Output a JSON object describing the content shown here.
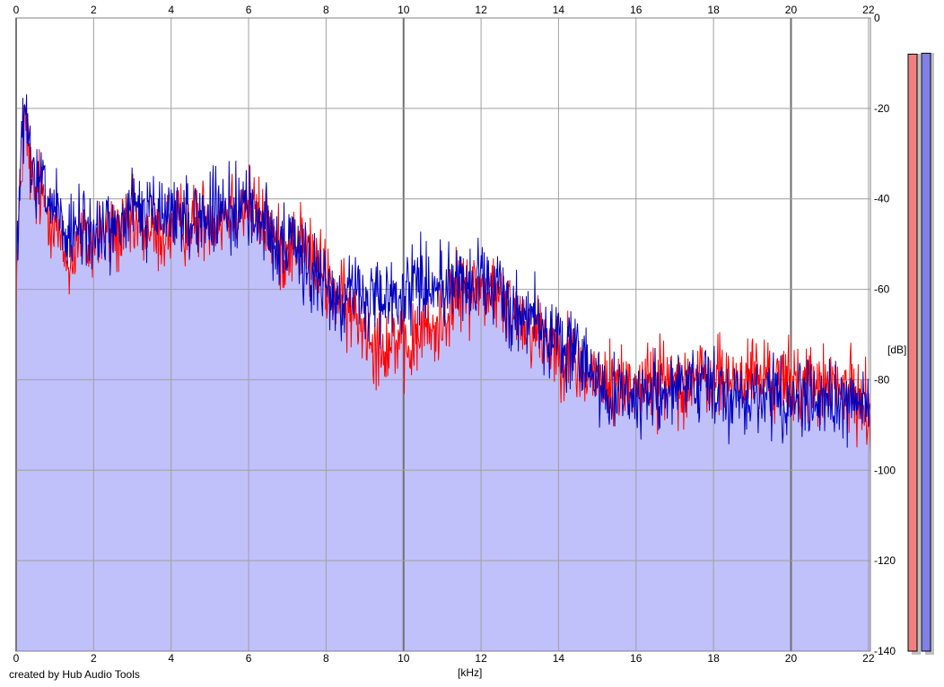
{
  "credit": "created by Hub Audio Tools",
  "chart_data": {
    "type": "line",
    "xlabel": "[kHz]",
    "ylabel": "[dB]",
    "xlim": [
      0,
      22.05
    ],
    "ylim": [
      -140,
      0
    ],
    "x_ticks": [
      0,
      2,
      4,
      6,
      8,
      10,
      12,
      14,
      16,
      18,
      20,
      22
    ],
    "y_ticks": [
      0,
      -20,
      -40,
      -60,
      -80,
      -100,
      -120,
      -140
    ],
    "grid": true,
    "legend": "none",
    "colors": {
      "left": "#ff0000",
      "right": "#0000c0",
      "fill": "#c0c0fa",
      "meter_left": "#f08080",
      "meter_right": "#8080e8"
    },
    "series": [
      {
        "x": [
          0,
          0.1,
          0.2,
          0.3,
          0.4,
          0.5,
          0.6,
          0.8,
          1,
          1.2,
          1.4,
          1.6,
          1.8,
          2,
          2.2,
          2.5,
          2.8,
          3,
          3.3,
          3.6,
          4,
          4.3,
          4.6,
          5,
          5.3,
          5.6,
          5.8,
          6,
          6.2,
          6.4,
          6.6,
          6.8,
          7,
          7.2,
          7.4,
          7.6,
          7.8,
          8,
          8.3,
          8.6,
          9,
          9.3,
          9.6,
          9.8,
          10,
          10.2,
          10.5,
          10.8,
          11,
          11.3,
          11.6,
          12,
          12.3,
          12.6,
          13,
          13.3,
          13.6,
          14,
          14.3,
          14.6,
          15,
          15.3,
          15.6,
          16,
          16.5,
          17,
          17.5,
          18,
          18.5,
          19,
          19.5,
          20,
          20.5,
          21,
          21.5,
          22
        ],
        "values": [
          -59,
          -40,
          -22,
          -28,
          -36,
          -40,
          -38,
          -42,
          -44,
          -52,
          -55,
          -48,
          -50,
          -50,
          -47,
          -48,
          -48,
          -46,
          -46,
          -48,
          -47,
          -45,
          -46,
          -43,
          -44,
          -41,
          -43,
          -40,
          -44,
          -45,
          -48,
          -52,
          -50,
          -50,
          -49,
          -53,
          -55,
          -58,
          -62,
          -65,
          -67,
          -72,
          -72,
          -70,
          -75,
          -73,
          -68,
          -70,
          -66,
          -62,
          -60,
          -60,
          -60,
          -64,
          -66,
          -68,
          -70,
          -73,
          -75,
          -78,
          -80,
          -81,
          -81,
          -81,
          -80,
          -80,
          -80,
          -80,
          -80,
          -79,
          -80,
          -81,
          -81,
          -82,
          -83,
          -86
        ]
      },
      {
        "x": [
          0,
          0.1,
          0.2,
          0.3,
          0.4,
          0.5,
          0.6,
          0.8,
          1,
          1.2,
          1.4,
          1.6,
          1.8,
          2,
          2.2,
          2.5,
          2.8,
          3,
          3.3,
          3.6,
          4,
          4.3,
          4.6,
          5,
          5.3,
          5.6,
          5.8,
          6,
          6.2,
          6.4,
          6.6,
          6.8,
          7,
          7.2,
          7.4,
          7.6,
          7.8,
          8,
          8.3,
          8.6,
          9,
          9.3,
          9.6,
          9.8,
          10,
          10.2,
          10.5,
          10.8,
          11,
          11.3,
          11.6,
          12,
          12.3,
          12.6,
          13,
          13.3,
          13.6,
          14,
          14.3,
          14.6,
          15,
          15.3,
          15.6,
          16,
          16.5,
          17,
          17.5,
          18,
          18.5,
          19,
          19.5,
          20,
          20.5,
          21,
          21.5,
          22
        ],
        "values": [
          -54,
          -38,
          -20,
          -26,
          -35,
          -38,
          -36,
          -40,
          -42,
          -48,
          -50,
          -46,
          -47,
          -48,
          -46,
          -47,
          -45,
          -42,
          -43,
          -44,
          -43,
          -44,
          -44,
          -44,
          -44,
          -42,
          -42,
          -42,
          -44,
          -45,
          -47,
          -50,
          -51,
          -52,
          -52,
          -56,
          -58,
          -60,
          -62,
          -60,
          -62,
          -64,
          -63,
          -61,
          -61,
          -58,
          -58,
          -60,
          -58,
          -58,
          -59,
          -58,
          -61,
          -63,
          -64,
          -66,
          -68,
          -72,
          -74,
          -76,
          -80,
          -82,
          -84,
          -84,
          -83,
          -82,
          -83,
          -82,
          -82,
          -84,
          -83,
          -84,
          -84,
          -84,
          -85,
          -86
        ]
      }
    ],
    "levels": {
      "left_db": -8,
      "right_db": -8
    }
  }
}
